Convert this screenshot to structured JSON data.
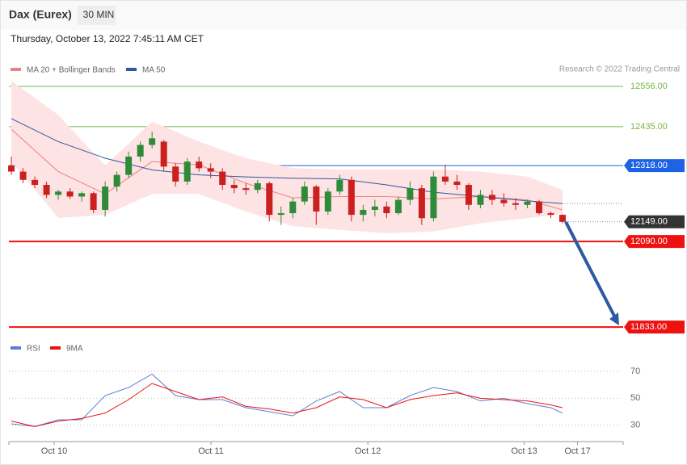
{
  "chart_data": [
    {
      "type": "candlestick",
      "title": "Dax (Eurex)",
      "timeframe": "30 MIN",
      "subtitle": "Thursday, October 13, 2022 7:45:11 AM CET",
      "credit": "Research © 2022 Trading Central",
      "up_color": "#2e8b3a",
      "down_color": "#cc1f1f",
      "x": [
        0,
        1,
        2,
        3,
        4,
        5,
        6,
        7,
        8,
        9,
        10,
        11,
        12,
        13,
        14,
        15,
        16,
        17,
        18,
        19,
        20,
        21,
        22,
        23,
        24,
        25,
        26,
        27,
        28,
        29,
        30,
        31,
        32,
        33,
        34,
        35,
        36,
        37,
        38,
        39,
        40,
        41,
        42,
        43,
        44,
        45,
        46,
        47
      ],
      "open": [
        12318,
        12300,
        12275,
        12260,
        12230,
        12240,
        12225,
        12235,
        12185,
        12255,
        12290,
        12345,
        12380,
        12390,
        12315,
        12270,
        12330,
        12310,
        12300,
        12260,
        12250,
        12245,
        12265,
        12170,
        12175,
        12210,
        12255,
        12180,
        12240,
        12275,
        12170,
        12185,
        12195,
        12175,
        12215,
        12250,
        12160,
        12285,
        12270,
        12260,
        12200,
        12230,
        12215,
        12205,
        12200,
        12210,
        12175,
        12170
      ],
      "high": [
        12345,
        12310,
        12285,
        12270,
        12245,
        12250,
        12240,
        12240,
        12270,
        12300,
        12360,
        12390,
        12420,
        12395,
        12325,
        12340,
        12345,
        12325,
        12310,
        12275,
        12265,
        12275,
        12270,
        12195,
        12220,
        12270,
        12260,
        12250,
        12290,
        12285,
        12200,
        12215,
        12210,
        12225,
        12270,
        12260,
        12300,
        12320,
        12290,
        12265,
        12245,
        12245,
        12235,
        12220,
        12215,
        12215,
        12180,
        12172
      ],
      "low": [
        12290,
        12265,
        12250,
        12220,
        12215,
        12218,
        12210,
        12175,
        12165,
        12240,
        12280,
        12330,
        12370,
        12300,
        12255,
        12260,
        12300,
        12280,
        12245,
        12235,
        12230,
        12235,
        12150,
        12140,
        12160,
        12200,
        12140,
        12170,
        12230,
        12150,
        12150,
        12165,
        12160,
        12170,
        12200,
        12140,
        12150,
        12260,
        12245,
        12185,
        12190,
        12200,
        12195,
        12185,
        12190,
        12170,
        12160,
        12145
      ],
      "close": [
        12300,
        12275,
        12260,
        12230,
        12240,
        12225,
        12235,
        12185,
        12255,
        12290,
        12345,
        12380,
        12400,
        12315,
        12270,
        12330,
        12310,
        12300,
        12260,
        12250,
        12245,
        12265,
        12170,
        12175,
        12210,
        12255,
        12180,
        12240,
        12275,
        12170,
        12185,
        12195,
        12175,
        12215,
        12250,
        12160,
        12285,
        12270,
        12260,
        12200,
        12230,
        12215,
        12205,
        12200,
        12210,
        12175,
        12170,
        12149
      ],
      "xlim": [
        -0.21,
        52.17
      ],
      "ylim": [
        11809,
        12585
      ],
      "overlays": [
        {
          "name": "MA 20 + Bollinger Bands",
          "color": "#f08080",
          "band_color": "#fde3e3",
          "x": [
            0,
            4,
            8,
            12,
            16,
            20,
            24,
            28,
            32,
            36,
            40,
            44,
            47
          ],
          "values": [
            12427,
            12300,
            12233,
            12330,
            12320,
            12265,
            12221,
            12225,
            12225,
            12218,
            12225,
            12215,
            12185
          ],
          "upper": [
            12573,
            12470,
            12318,
            12450,
            12390,
            12340,
            12310,
            12306,
            12306,
            12306,
            12300,
            12285,
            12245
          ],
          "lower": [
            12330,
            12161,
            12170,
            12233,
            12233,
            12180,
            12136,
            12125,
            12115,
            12120,
            12145,
            12160,
            12173
          ]
        },
        {
          "name": "MA 50",
          "color": "#2d5aa0",
          "x": [
            0,
            4,
            8,
            12,
            16,
            20,
            24,
            28,
            32,
            36,
            40,
            44,
            47
          ],
          "values": [
            12459,
            12390,
            12340,
            12305,
            12290,
            12284,
            12280,
            12278,
            12260,
            12238,
            12225,
            12212,
            12204
          ]
        }
      ],
      "levels": [
        {
          "value": 12556,
          "label": "12556.00",
          "color": "#7ab648",
          "line": "solid",
          "tag": "text"
        },
        {
          "value": 12435,
          "label": "12435.00",
          "color": "#7ab648",
          "line": "solid",
          "tag": "text"
        },
        {
          "value": 12318,
          "label": "12318.00",
          "color": "#1e63e6",
          "line": "solid",
          "tag": "box"
        },
        {
          "value": 12149,
          "label": "12149.00",
          "color": "#333333",
          "line": "dotted",
          "tag": "box"
        },
        {
          "value": 12090,
          "label": "12090.00",
          "color": "#ee1111",
          "line": "solid",
          "tag": "box"
        },
        {
          "value": 11833,
          "label": "11833.00",
          "color": "#ee1111",
          "line": "solid",
          "tag": "box"
        }
      ],
      "arrow_color": "#2d5aa0"
    },
    {
      "type": "line",
      "x": [
        0,
        2,
        4,
        6,
        8,
        10,
        12,
        14,
        16,
        18,
        20,
        22,
        24,
        26,
        28,
        30,
        32,
        34,
        36,
        38,
        40,
        42,
        44,
        46,
        47
      ],
      "series": [
        {
          "name": "RSI",
          "color": "#5b7fd6",
          "values": [
            31,
            29,
            34,
            34,
            52,
            58,
            68,
            52,
            49,
            49,
            43,
            40,
            37,
            48,
            55,
            43,
            43,
            52,
            58,
            55,
            48,
            50,
            46,
            43,
            39
          ]
        },
        {
          "name": "9MA",
          "color": "#ee1111",
          "values": [
            33,
            29,
            33,
            35,
            39,
            49,
            61,
            55,
            49,
            51,
            44,
            42,
            39,
            43,
            51,
            49,
            43,
            49,
            52,
            54,
            50,
            49,
            48,
            45,
            43
          ]
        }
      ],
      "xlim": [
        -0.21,
        52.17
      ],
      "ylim": [
        19,
        79
      ],
      "yticks": [
        30,
        50,
        70
      ],
      "xticks": [
        {
          "value": 3.65,
          "label": "Oct 10"
        },
        {
          "value": 17.02,
          "label": "Oct 11"
        },
        {
          "value": 30.4,
          "label": "Oct 12"
        },
        {
          "value": 43.73,
          "label": "Oct 13"
        },
        {
          "value": 48.28,
          "label": "Oct 17"
        }
      ]
    }
  ]
}
